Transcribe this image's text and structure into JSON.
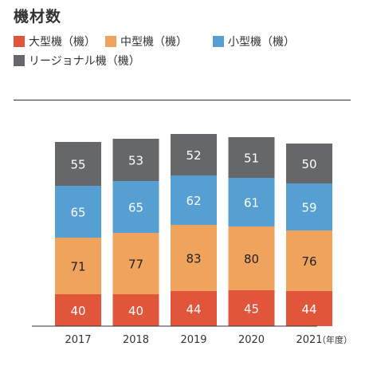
{
  "title": "機材数",
  "legend": [
    {
      "label": "大型機（機）",
      "color": "#e1553b"
    },
    {
      "label": "中型機（機）",
      "color": "#efa35c"
    },
    {
      "label": "小型機（機）",
      "color": "#559fd3"
    },
    {
      "label": "リージョナル機（機）",
      "color": "#666769"
    }
  ],
  "chart_data": {
    "type": "bar",
    "stacked": true,
    "categories": [
      "2017",
      "2018",
      "2019",
      "2020",
      "2021"
    ],
    "x_unit": "（年度）",
    "series": [
      {
        "name": "大型機（機）",
        "color": "#e1553b",
        "values": [
          40,
          40,
          44,
          45,
          44
        ]
      },
      {
        "name": "中型機（機）",
        "color": "#efa35c",
        "values": [
          71,
          77,
          83,
          80,
          76
        ]
      },
      {
        "name": "小型機（機）",
        "color": "#559fd3",
        "values": [
          65,
          65,
          62,
          61,
          59
        ]
      },
      {
        "name": "リージョナル機（機）",
        "color": "#666769",
        "values": [
          55,
          53,
          52,
          51,
          50
        ]
      }
    ]
  }
}
